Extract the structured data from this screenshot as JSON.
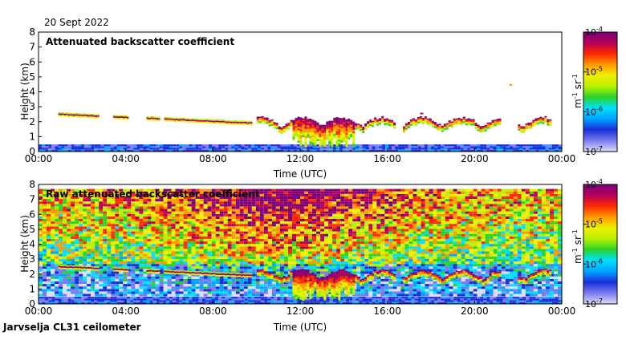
{
  "date": "20 Sept 2022",
  "footer": "Jarvselja CL31 ceilometer",
  "colors": {
    "frame": "#000000",
    "colormap": [
      "#dcdcf5",
      "#7b7bf0",
      "#1a2fd8",
      "#00a4ff",
      "#00e0ff",
      "#2ad32a",
      "#b8f000",
      "#f0f000",
      "#ff9a00",
      "#ff2a00",
      "#b4005a",
      "#7a007a"
    ]
  },
  "chart_data": [
    {
      "type": "heatmap",
      "title": "Attenuated backscatter coefficient",
      "xlabel": "Time (UTC)",
      "ylabel": "Height (km)",
      "xlim": [
        0,
        24
      ],
      "ylim": [
        0,
        8
      ],
      "xticks": [
        "00:00",
        "04:00",
        "08:00",
        "12:00",
        "16:00",
        "20:00",
        "00:00"
      ],
      "xtick_values": [
        0,
        4,
        8,
        12,
        16,
        20,
        24
      ],
      "yticks": [
        "0",
        "1",
        "2",
        "3",
        "4",
        "5",
        "6",
        "7",
        "8"
      ],
      "colorbar": {
        "unit": "m^-1 sr^-1",
        "unit_base": "m",
        "unit_exp1": "-1",
        "unit_mid": "sr",
        "unit_exp2": "-1",
        "scale": "log",
        "range": [
          1e-07,
          0.0001
        ],
        "ticks": [
          {
            "base": "10",
            "exp": "-4"
          },
          {
            "base": "10",
            "exp": "-5"
          },
          {
            "base": "10",
            "exp": "-6"
          },
          {
            "base": "10",
            "exp": "-7"
          }
        ]
      },
      "features": [
        {
          "name": "cloud-layer",
          "t_start": 0.9,
          "t_end": 9.8,
          "height_km": [
            2.5,
            1.9
          ],
          "intensity": "high"
        },
        {
          "name": "convective-clouds",
          "t_start": 10.0,
          "t_end": 23.5,
          "height_km": [
            0.3,
            2.2
          ],
          "intensity": "high"
        },
        {
          "name": "boundary-layer",
          "t_start": 0,
          "t_end": 24,
          "height_km": [
            0,
            0.5
          ],
          "intensity": "moderate"
        }
      ]
    },
    {
      "type": "heatmap",
      "title": "Raw attenuated backscatter coefficient",
      "xlabel": "Time (UTC)",
      "ylabel": "Height (km)",
      "xlim": [
        0,
        24
      ],
      "ylim": [
        0,
        8
      ],
      "xticks": [
        "00:00",
        "04:00",
        "08:00",
        "12:00",
        "16:00",
        "20:00",
        "00:00"
      ],
      "xtick_values": [
        0,
        4,
        8,
        12,
        16,
        20,
        24
      ],
      "yticks": [
        "0",
        "1",
        "2",
        "3",
        "4",
        "5",
        "6",
        "7",
        "8"
      ],
      "colorbar": {
        "unit": "m^-1 sr^-1",
        "unit_base": "m",
        "unit_exp1": "-1",
        "unit_mid": "sr",
        "unit_exp2": "-1",
        "scale": "log",
        "range": [
          1e-07,
          0.0001
        ],
        "ticks": [
          {
            "base": "10",
            "exp": "-4"
          },
          {
            "base": "10",
            "exp": "-5"
          },
          {
            "base": "10",
            "exp": "-6"
          },
          {
            "base": "10",
            "exp": "-7"
          }
        ]
      },
      "features": [
        {
          "name": "noise-background",
          "t_start": 0,
          "t_end": 24,
          "height_km": [
            2.5,
            7.7
          ],
          "intensity": "noisy"
        },
        {
          "name": "cloud-layer",
          "t_start": 0.9,
          "t_end": 9.8,
          "height_km": [
            2.5,
            1.9
          ],
          "intensity": "high"
        },
        {
          "name": "convective-clouds",
          "t_start": 10.0,
          "t_end": 23.5,
          "height_km": [
            0.3,
            2.2
          ],
          "intensity": "high"
        }
      ]
    }
  ]
}
